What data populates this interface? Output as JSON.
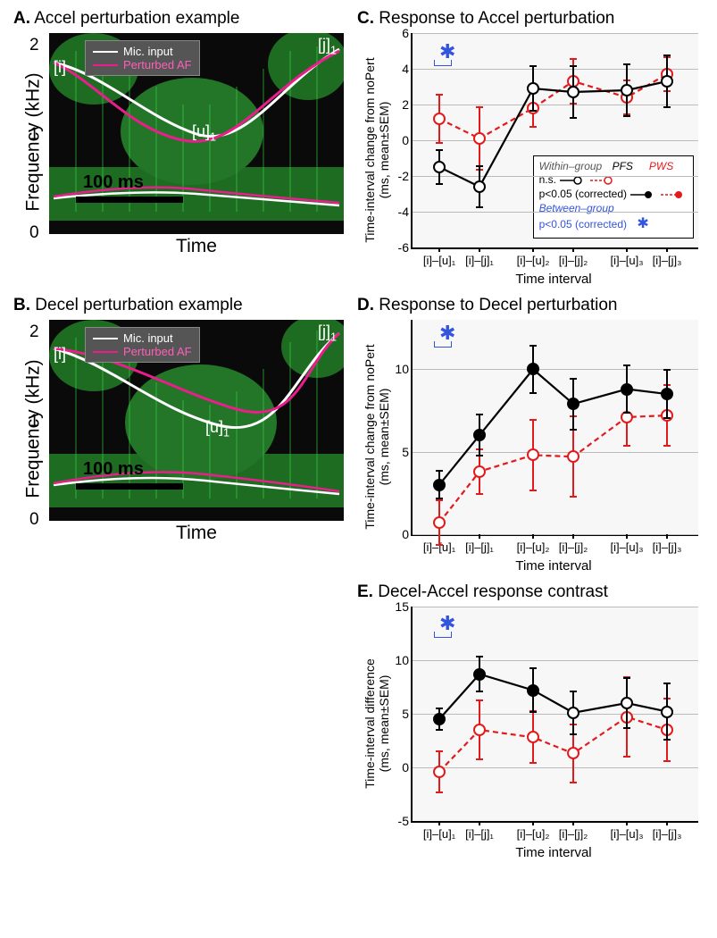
{
  "colors": {
    "mic_line": "#ffffff",
    "perturbed_line": "#e91e8c",
    "spectro_green": "#2dd03a",
    "spectro_dark": "#0a0a0a",
    "pfs_color": "#000000",
    "pws_color": "#e31a1c",
    "sig_star": "#3355dd",
    "grid": "#bbbbbb",
    "chart_bg": "#f7f7f7"
  },
  "panels": {
    "A": {
      "letter": "A.",
      "title": "Accel perturbation example"
    },
    "B": {
      "letter": "B.",
      "title": "Decel perturbation example"
    },
    "C": {
      "letter": "C.",
      "title": "Response to Accel perturbation"
    },
    "D": {
      "letter": "D.",
      "title": "Response to Decel perturbation"
    },
    "E": {
      "letter": "E.",
      "title": "Decel-Accel response contrast"
    }
  },
  "spectro": {
    "ylabel": "Frequency (kHz)",
    "xlabel": "Time",
    "yticks": [
      "0",
      "1",
      "2"
    ],
    "scalebar": "100 ms",
    "legend": {
      "mic": "Mic. input",
      "pert": "Perturbed AF"
    },
    "annot_i": "[i]",
    "annot_u": "[u]",
    "annot_u_sub": "1",
    "annot_j": "[j]",
    "annot_j_sub": "1"
  },
  "charts_common": {
    "xlabel": "Time interval",
    "xticks": [
      "[i]–[u]₁",
      "[i]–[j]₁",
      "[i]–[u]₂",
      "[i]–[j]₂",
      "[i]–[u]₃",
      "[i]–[j]₃"
    ]
  },
  "chartC": {
    "ylabel": "Time-interval change from noPert\n(ms, mean±SEM)",
    "ylim": [
      -6,
      6
    ],
    "yticks": [
      -6,
      -4,
      -2,
      0,
      2,
      4,
      6
    ],
    "pfs": {
      "y": [
        -1.5,
        -2.6,
        2.9,
        2.7,
        2.8,
        3.3
      ],
      "err": [
        1.0,
        1.2,
        1.3,
        1.5,
        1.5,
        1.5
      ],
      "filled": [
        0,
        0,
        0,
        0,
        0,
        0
      ]
    },
    "pws": {
      "y": [
        1.2,
        0.1,
        1.8,
        3.3,
        2.4,
        3.7
      ],
      "err": [
        1.4,
        1.8,
        1.1,
        1.3,
        1.0,
        1.0
      ],
      "filled": [
        0,
        0,
        0,
        0,
        0,
        0
      ]
    },
    "sig_between": [
      0
    ]
  },
  "chartD": {
    "ylabel": "Time-interval change from noPert\n(ms, mean±SEM)",
    "ylim": [
      0,
      13
    ],
    "yticks": [
      0,
      5,
      10
    ],
    "pfs": {
      "y": [
        3.0,
        6.0,
        10.0,
        7.9,
        8.8,
        8.5
      ],
      "err": [
        0.9,
        1.3,
        1.5,
        1.6,
        1.5,
        1.5
      ],
      "filled": [
        1,
        1,
        1,
        1,
        1,
        1
      ]
    },
    "pws": {
      "y": [
        0.7,
        3.8,
        4.8,
        4.7,
        7.1,
        7.2
      ],
      "err": [
        1.4,
        1.4,
        2.2,
        2.5,
        1.8,
        1.9
      ],
      "filled": [
        0,
        0,
        0,
        0,
        0,
        0
      ]
    },
    "sig_between": [
      0
    ]
  },
  "chartE": {
    "ylabel": "Time-interval difference\n(ms, mean±SEM)",
    "ylim": [
      -5,
      15
    ],
    "yticks": [
      -5,
      0,
      5,
      10,
      15
    ],
    "pfs": {
      "y": [
        4.5,
        8.7,
        7.2,
        5.1,
        6.0,
        5.2
      ],
      "err": [
        1.1,
        1.7,
        2.1,
        2.1,
        2.4,
        2.7
      ],
      "filled": [
        1,
        1,
        1,
        0,
        0,
        0
      ]
    },
    "pws": {
      "y": [
        -0.4,
        3.5,
        2.8,
        1.3,
        4.7,
        3.5
      ],
      "err": [
        2.0,
        2.8,
        2.5,
        2.8,
        3.8,
        3.0
      ],
      "filled": [
        0,
        0,
        0,
        0,
        0,
        0
      ]
    },
    "sig_between": [
      0
    ]
  },
  "legendC": {
    "within": "Within–group",
    "pfs": "PFS",
    "pws": "PWS",
    "ns": "n.s.",
    "sig": "p<0.05 (corrected)",
    "between": "Between–group",
    "bsig": "p<0.05 (corrected)"
  }
}
